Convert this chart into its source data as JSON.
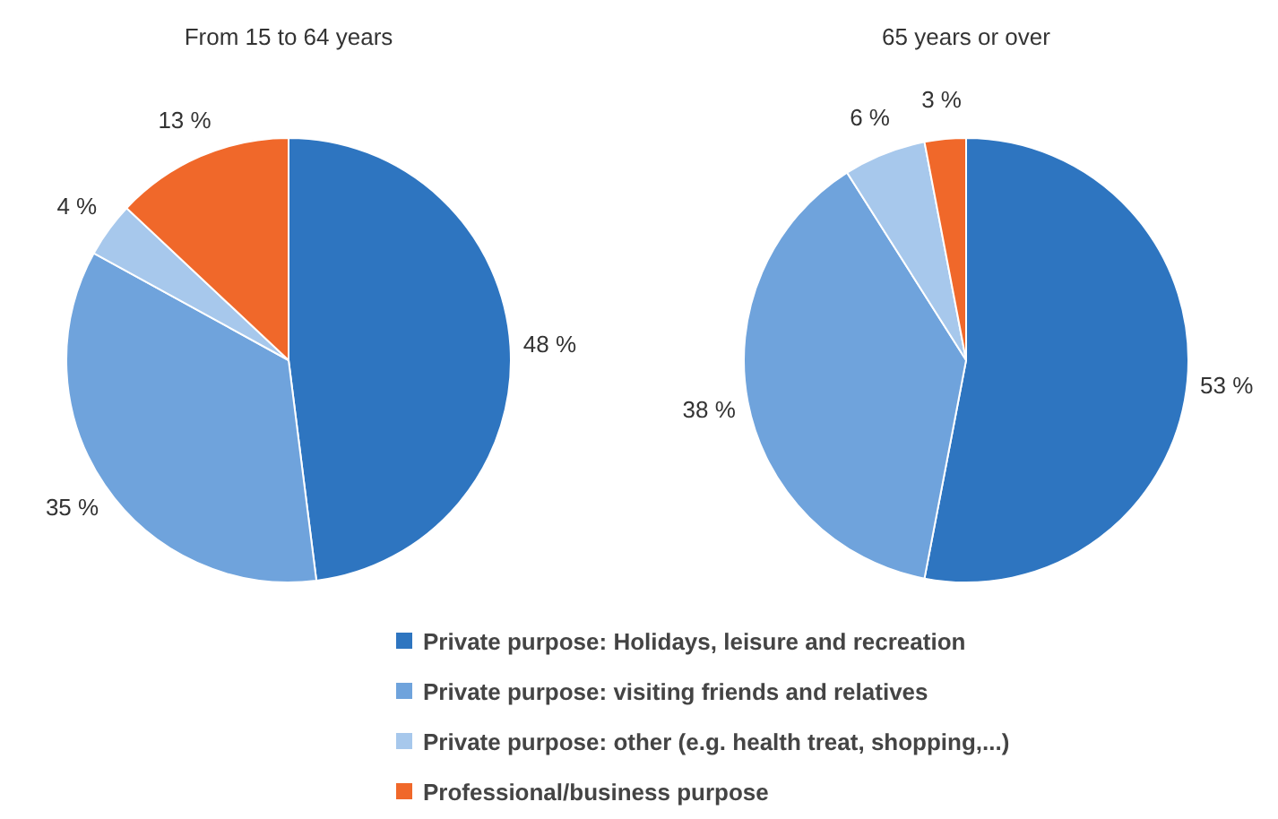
{
  "chart_data": [
    {
      "type": "pie",
      "title": "From 15 to 64 years",
      "categories": [
        "Private purpose: Holidays, leisure and recreation",
        "Private purpose: visiting friends and relatives",
        "Private purpose: other (e.g. health treat, shopping,...)",
        "Professional/business purpose"
      ],
      "values": [
        48,
        35,
        4,
        13
      ],
      "value_labels": [
        "48 %",
        "35 %",
        "4 %",
        "13 %"
      ],
      "colors": [
        "#2e75c0",
        "#6fa3dc",
        "#a7c8ec",
        "#f0682a"
      ],
      "legend": "bottom"
    },
    {
      "type": "pie",
      "title": "65 years or over",
      "categories": [
        null,
        null,
        null,
        null
      ],
      "values": [
        53,
        38,
        6,
        3
      ],
      "value_labels": [
        "53 %",
        "38 %",
        "6 %",
        "3 %"
      ],
      "colors": [
        "#2e75c0",
        "#6fa3dc",
        "#a7c8ec",
        "#f0682a"
      ]
    }
  ]
}
